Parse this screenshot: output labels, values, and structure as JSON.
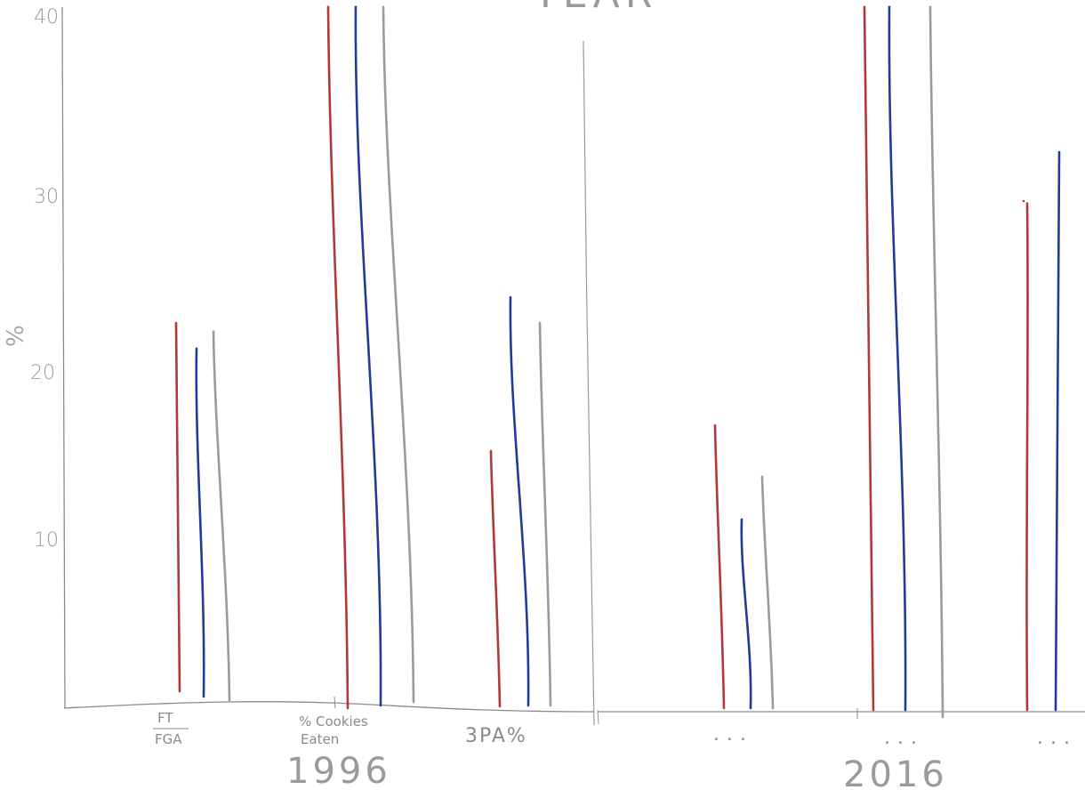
{
  "chart_data": {
    "type": "bar",
    "title": "YEAR",
    "ylabel": "%",
    "ylim": [
      0,
      40
    ],
    "yticks": [
      "10",
      "20",
      "30",
      "40"
    ],
    "groups": [
      {
        "year_label": "1996",
        "categories": [
          {
            "label": "FT/FGA",
            "numerator": "FT",
            "denominator": "FGA"
          },
          {
            "label": "% Cookies Eaten",
            "line1": "% Cookies",
            "line2": "Eaten"
          },
          {
            "label": "3PA%"
          }
        ]
      },
      {
        "year_label": "2016",
        "categories": [
          {
            "label": "..."
          },
          {
            "label": "..."
          },
          {
            "label": "..."
          }
        ]
      }
    ],
    "series": [
      {
        "color": "#b03a37",
        "values": [
          22.5,
          41,
          15,
          16.5,
          41,
          29.5
        ]
      },
      {
        "color": "#1f3b9c",
        "values": [
          21,
          41,
          24,
          11,
          41,
          32.5
        ]
      },
      {
        "color": "#9a9a9a",
        "values": [
          22,
          41,
          22.5,
          13.5,
          41,
          null
        ]
      }
    ],
    "colors": {
      "red": "#b03a37",
      "blue": "#1f3b9c",
      "gray": "#9a9a9a",
      "axis": "#888888"
    }
  }
}
